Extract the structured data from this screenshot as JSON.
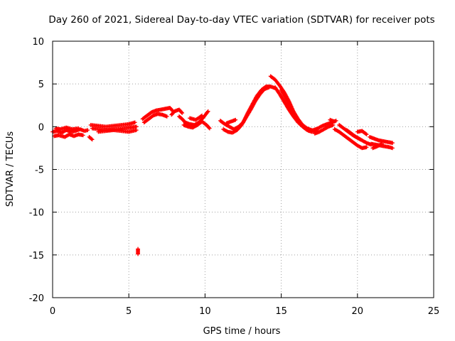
{
  "chart_data": {
    "type": "scatter",
    "title": "Day 260 of 2021, Sidereal Day-to-day VTEC variation (SDTVAR) for receiver pots",
    "xlabel": "GPS time / hours",
    "ylabel": "SDTVAR / TECUs",
    "xlim": [
      0,
      25
    ],
    "ylim": [
      -20,
      10
    ],
    "xticks": [
      0,
      5,
      10,
      15,
      20,
      25
    ],
    "yticks": [
      -20,
      -15,
      -10,
      -5,
      0,
      5,
      10
    ],
    "xtick_labels": [
      "0",
      "5",
      "10",
      "15",
      "20",
      "25"
    ],
    "ytick_labels": [
      "-20",
      "-15",
      "-10",
      "-5",
      "0",
      "5",
      "10"
    ],
    "grid": true,
    "marker": "+",
    "color": "#ff0000",
    "series": [
      {
        "name": "SDTVAR",
        "tracks": [
          [
            [
              0.0,
              -0.6
            ],
            [
              0.3,
              -0.5
            ],
            [
              0.6,
              -0.7
            ],
            [
              0.9,
              -0.4
            ],
            [
              1.2,
              -0.6
            ],
            [
              1.5,
              -0.5
            ],
            [
              1.8,
              -0.3
            ],
            [
              2.1,
              -0.5
            ],
            [
              2.3,
              -0.4
            ]
          ],
          [
            [
              0.1,
              -1.1
            ],
            [
              0.4,
              -1.0
            ],
            [
              0.8,
              -1.2
            ],
            [
              1.1,
              -0.9
            ],
            [
              1.4,
              -1.1
            ],
            [
              1.7,
              -0.9
            ],
            [
              2.0,
              -1.0
            ]
          ],
          [
            [
              0.2,
              -0.2
            ],
            [
              0.5,
              -0.3
            ],
            [
              0.9,
              -0.1
            ],
            [
              1.3,
              -0.3
            ],
            [
              1.7,
              -0.2
            ]
          ],
          [
            [
              2.4,
              -1.2
            ],
            [
              2.6,
              -1.5
            ]
          ],
          [
            [
              2.5,
              0.2
            ],
            [
              3.0,
              0.1
            ],
            [
              3.5,
              0.0
            ],
            [
              4.0,
              0.1
            ],
            [
              4.5,
              0.2
            ],
            [
              5.0,
              0.3
            ],
            [
              5.4,
              0.5
            ]
          ],
          [
            [
              2.6,
              -0.2
            ],
            [
              3.1,
              -0.3
            ],
            [
              3.6,
              -0.4
            ],
            [
              4.1,
              -0.3
            ],
            [
              4.6,
              -0.2
            ],
            [
              5.1,
              -0.1
            ],
            [
              5.5,
              0.0
            ]
          ],
          [
            [
              3.0,
              -0.6
            ],
            [
              3.5,
              -0.5
            ],
            [
              4.0,
              -0.4
            ],
            [
              4.5,
              -0.5
            ],
            [
              5.0,
              -0.6
            ],
            [
              5.5,
              -0.4
            ]
          ],
          [
            [
              5.9,
              0.9
            ],
            [
              6.2,
              1.3
            ],
            [
              6.5,
              1.7
            ],
            [
              6.8,
              1.9
            ],
            [
              7.1,
              2.0
            ],
            [
              7.4,
              2.1
            ],
            [
              7.7,
              2.2
            ],
            [
              7.9,
              1.8
            ]
          ],
          [
            [
              6.0,
              0.5
            ],
            [
              6.3,
              0.9
            ],
            [
              6.6,
              1.3
            ],
            [
              6.9,
              1.5
            ],
            [
              7.2,
              1.4
            ],
            [
              7.5,
              1.2
            ]
          ],
          [
            [
              7.8,
              1.4
            ],
            [
              8.0,
              1.8
            ],
            [
              8.3,
              2.0
            ],
            [
              8.5,
              1.6
            ]
          ],
          [
            [
              8.3,
              1.2
            ],
            [
              8.5,
              0.9
            ],
            [
              8.7,
              0.5
            ],
            [
              9.0,
              0.3
            ],
            [
              9.3,
              0.2
            ],
            [
              9.6,
              0.5
            ],
            [
              9.9,
              1.1
            ],
            [
              10.2,
              1.8
            ]
          ],
          [
            [
              8.6,
              0.2
            ],
            [
              8.9,
              0.0
            ],
            [
              9.2,
              -0.1
            ],
            [
              9.5,
              0.2
            ],
            [
              9.8,
              0.6
            ],
            [
              10.1,
              0.2
            ],
            [
              10.3,
              -0.2
            ]
          ],
          [
            [
              9.0,
              1.0
            ],
            [
              9.4,
              0.8
            ],
            [
              9.8,
              1.3
            ]
          ],
          [
            [
              11.0,
              0.7
            ],
            [
              11.3,
              0.3
            ],
            [
              11.6,
              0.0
            ],
            [
              11.9,
              -0.3
            ],
            [
              12.2,
              0.0
            ],
            [
              12.5,
              0.5
            ],
            [
              12.8,
              1.6
            ],
            [
              13.1,
              2.6
            ],
            [
              13.4,
              3.6
            ],
            [
              13.7,
              4.3
            ],
            [
              14.0,
              4.7
            ],
            [
              14.3,
              4.7
            ],
            [
              14.6,
              4.5
            ]
          ],
          [
            [
              11.2,
              -0.3
            ],
            [
              11.5,
              -0.6
            ],
            [
              11.8,
              -0.7
            ],
            [
              12.1,
              -0.4
            ],
            [
              12.4,
              0.2
            ],
            [
              12.7,
              1.1
            ],
            [
              13.0,
              2.0
            ],
            [
              13.3,
              3.0
            ],
            [
              13.6,
              3.8
            ],
            [
              13.9,
              4.4
            ],
            [
              14.2,
              4.6
            ]
          ],
          [
            [
              11.4,
              0.4
            ],
            [
              11.7,
              0.6
            ],
            [
              12.0,
              0.8
            ]
          ],
          [
            [
              14.3,
              5.9
            ],
            [
              14.6,
              5.5
            ],
            [
              14.9,
              4.8
            ],
            [
              15.2,
              4.0
            ],
            [
              15.5,
              3.0
            ],
            [
              15.8,
              1.8
            ],
            [
              16.1,
              0.9
            ],
            [
              16.4,
              0.2
            ],
            [
              16.7,
              -0.2
            ],
            [
              17.0,
              -0.4
            ]
          ],
          [
            [
              14.6,
              4.6
            ],
            [
              14.9,
              3.8
            ],
            [
              15.2,
              2.9
            ],
            [
              15.5,
              2.0
            ],
            [
              15.8,
              1.2
            ],
            [
              16.1,
              0.5
            ],
            [
              16.4,
              0.0
            ],
            [
              16.7,
              -0.4
            ],
            [
              17.0,
              -0.6
            ],
            [
              17.4,
              -0.5
            ]
          ],
          [
            [
              15.0,
              4.3
            ],
            [
              15.3,
              3.3
            ],
            [
              15.6,
              2.3
            ],
            [
              15.9,
              1.4
            ],
            [
              16.2,
              0.6
            ]
          ],
          [
            [
              16.8,
              -0.5
            ],
            [
              17.1,
              -0.4
            ],
            [
              17.4,
              -0.2
            ],
            [
              17.7,
              0.1
            ],
            [
              18.0,
              0.3
            ],
            [
              18.3,
              0.5
            ],
            [
              18.6,
              0.7
            ]
          ],
          [
            [
              17.2,
              -0.8
            ],
            [
              17.5,
              -0.6
            ],
            [
              17.8,
              -0.3
            ],
            [
              18.1,
              0.0
            ],
            [
              18.4,
              0.2
            ]
          ],
          [
            [
              18.2,
              0.8
            ],
            [
              18.5,
              0.6
            ]
          ],
          [
            [
              18.5,
              -0.3
            ],
            [
              18.8,
              -0.6
            ],
            [
              19.1,
              -1.0
            ],
            [
              19.4,
              -1.4
            ],
            [
              19.7,
              -1.8
            ],
            [
              20.0,
              -2.2
            ],
            [
              20.3,
              -2.5
            ],
            [
              20.6,
              -2.4
            ]
          ],
          [
            [
              18.8,
              0.2
            ],
            [
              19.1,
              -0.2
            ],
            [
              19.4,
              -0.6
            ],
            [
              19.7,
              -1.0
            ],
            [
              20.0,
              -1.3
            ],
            [
              20.3,
              -1.6
            ],
            [
              20.6,
              -1.9
            ],
            [
              20.9,
              -2.1
            ]
          ],
          [
            [
              19.3,
              -0.4
            ],
            [
              19.6,
              -0.8
            ],
            [
              19.9,
              -1.2
            ],
            [
              20.2,
              -1.5
            ]
          ],
          [
            [
              20.0,
              -0.6
            ],
            [
              20.3,
              -0.5
            ],
            [
              20.6,
              -0.9
            ]
          ],
          [
            [
              20.8,
              -1.2
            ],
            [
              21.1,
              -1.4
            ],
            [
              21.4,
              -1.6
            ],
            [
              21.7,
              -1.7
            ],
            [
              22.0,
              -1.8
            ],
            [
              22.3,
              -1.9
            ]
          ],
          [
            [
              20.9,
              -2.0
            ],
            [
              21.2,
              -2.1
            ],
            [
              21.5,
              -2.2
            ],
            [
              21.8,
              -2.3
            ],
            [
              22.1,
              -2.4
            ],
            [
              22.3,
              -2.5
            ]
          ],
          [
            [
              21.0,
              -2.5
            ],
            [
              21.3,
              -2.3
            ],
            [
              21.6,
              -2.0
            ]
          ],
          [
            [
              5.6,
              -14.3
            ],
            [
              5.6,
              -14.6
            ],
            [
              5.6,
              -14.9
            ]
          ]
        ]
      }
    ]
  }
}
